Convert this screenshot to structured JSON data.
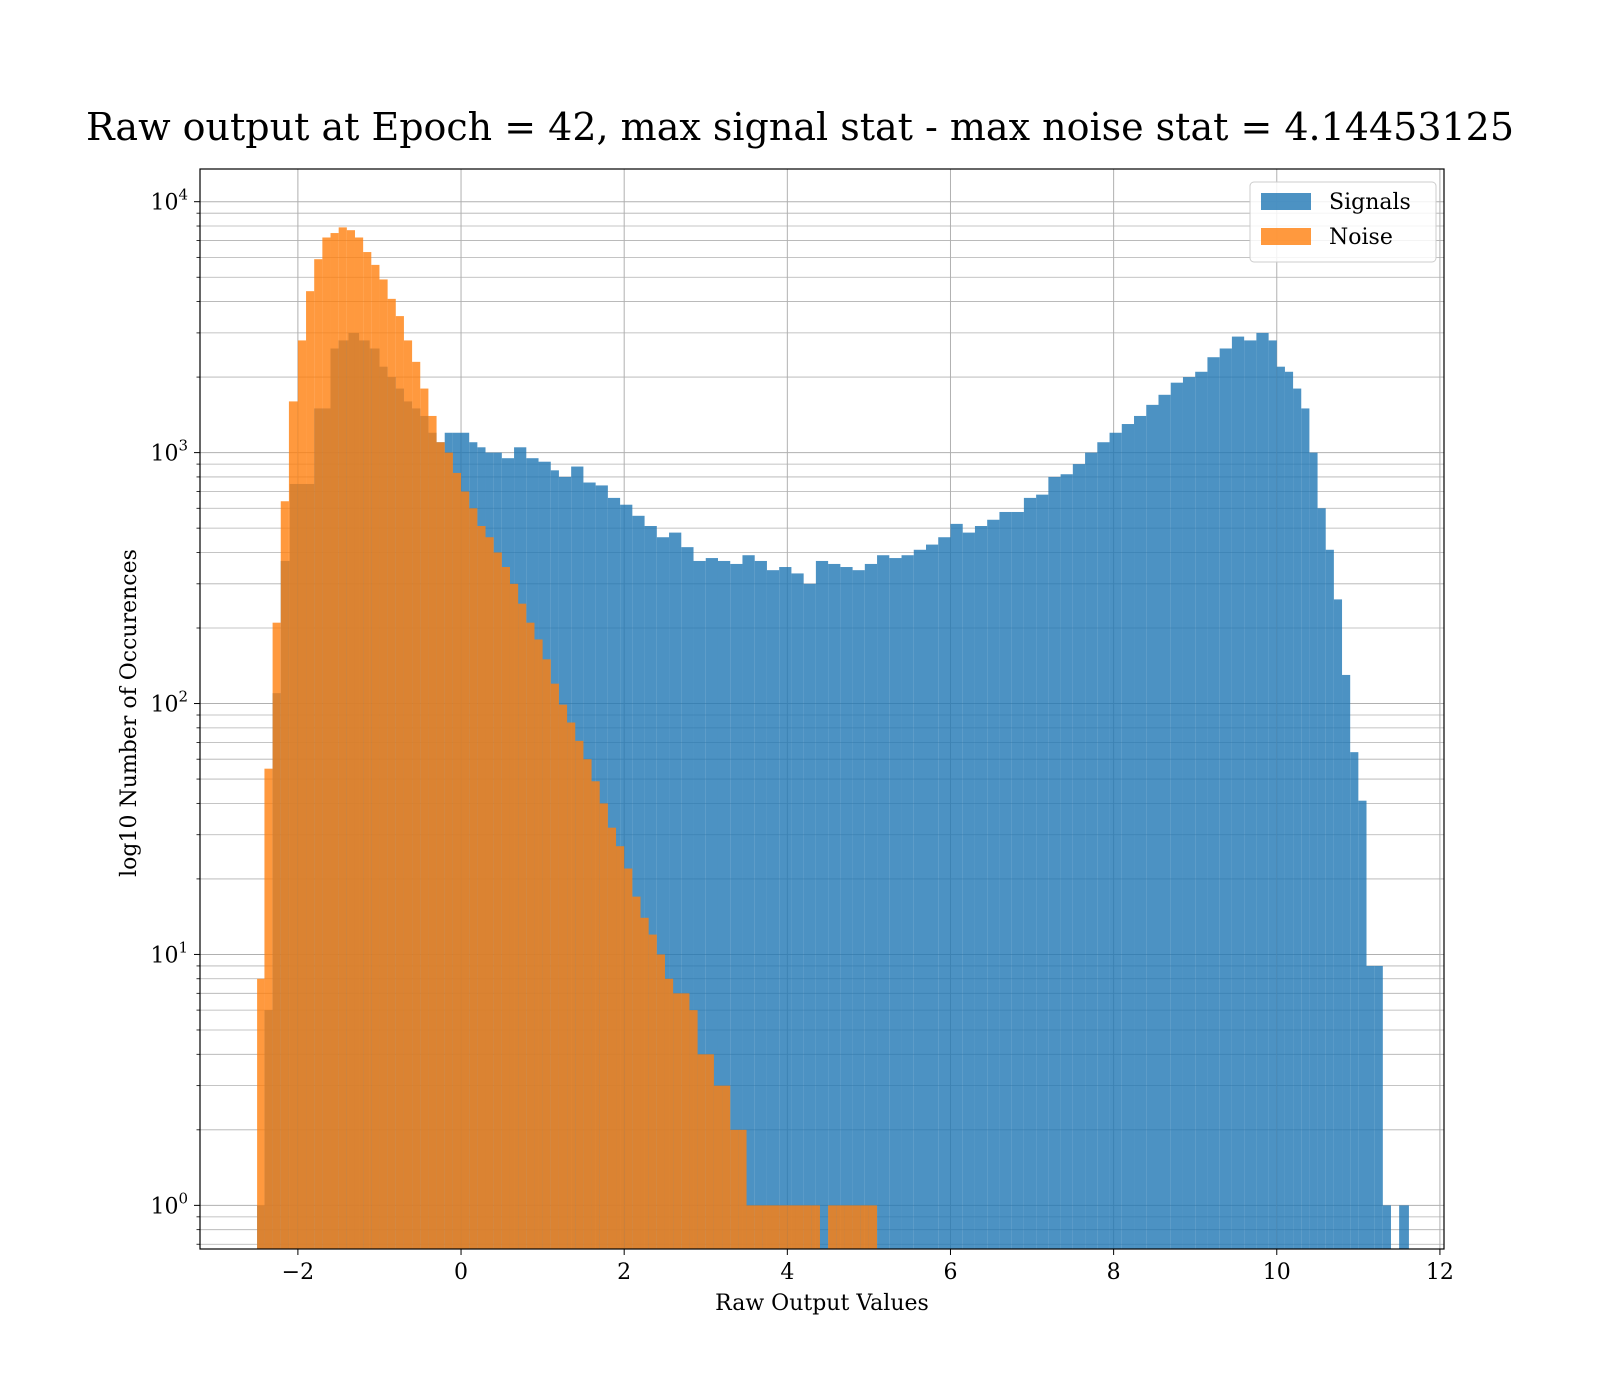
{
  "chart_data": {
    "type": "histogram",
    "title": "Raw output at Epoch = 42, max signal stat - max noise stat = 4.14453125",
    "xlabel": "Raw Output Values",
    "ylabel": "log10 Number of Occurences",
    "xlim": [
      -3.2,
      12.05
    ],
    "ylim": [
      0.67,
      13500
    ],
    "yscale": "log",
    "x_ticks": [
      -2,
      0,
      2,
      4,
      6,
      8,
      10,
      12
    ],
    "x_tick_labels": [
      "−2",
      "0",
      "2",
      "4",
      "6",
      "8",
      "10",
      "12"
    ],
    "y_ticks": [
      {
        "value": 1,
        "base": "10",
        "exp": "0"
      },
      {
        "value": 10,
        "base": "10",
        "exp": "1"
      },
      {
        "value": 100,
        "base": "10",
        "exp": "2"
      },
      {
        "value": 1000,
        "base": "10",
        "exp": "3"
      },
      {
        "value": 10000,
        "base": "10",
        "exp": "4"
      }
    ],
    "grid": true,
    "legend_position": "top-right",
    "colors": {
      "signals": "#1f77b4",
      "noise": "#ff7f0e"
    },
    "series": [
      {
        "name": "Signals",
        "bins": [
          [
            -2.5,
            -2.41,
            1
          ],
          [
            -2.41,
            -2.31,
            6
          ],
          [
            -2.31,
            -2.21,
            110
          ],
          [
            -2.21,
            -2.1,
            370
          ],
          [
            -2.1,
            -2.0,
            750
          ],
          [
            -2.0,
            -1.8,
            750
          ],
          [
            -1.8,
            -1.7,
            1500
          ],
          [
            -1.7,
            -1.6,
            1500
          ],
          [
            -1.6,
            -1.5,
            2600
          ],
          [
            -1.5,
            -1.38,
            2800
          ],
          [
            -1.38,
            -1.25,
            3000
          ],
          [
            -1.25,
            -1.12,
            2800
          ],
          [
            -1.12,
            -1.0,
            2600
          ],
          [
            -1.0,
            -0.9,
            2200
          ],
          [
            -0.9,
            -0.8,
            2000
          ],
          [
            -0.8,
            -0.7,
            1800
          ],
          [
            -0.7,
            -0.6,
            1600
          ],
          [
            -0.6,
            -0.5,
            1500
          ],
          [
            -0.5,
            -0.4,
            1400
          ],
          [
            -0.4,
            -0.3,
            1200
          ],
          [
            -0.3,
            -0.2,
            1100
          ],
          [
            -0.2,
            -0.1,
            1200
          ],
          [
            -0.1,
            0.0,
            1200
          ],
          [
            0.0,
            0.1,
            1200
          ],
          [
            0.1,
            0.2,
            1100
          ],
          [
            0.2,
            0.3,
            1050
          ],
          [
            0.3,
            0.4,
            1000
          ],
          [
            0.4,
            0.5,
            1000
          ],
          [
            0.5,
            0.65,
            950
          ],
          [
            0.65,
            0.8,
            1050
          ],
          [
            0.8,
            0.95,
            950
          ],
          [
            0.95,
            1.1,
            920
          ],
          [
            1.1,
            1.2,
            850
          ],
          [
            1.2,
            1.35,
            800
          ],
          [
            1.35,
            1.5,
            880
          ],
          [
            1.5,
            1.65,
            760
          ],
          [
            1.65,
            1.8,
            740
          ],
          [
            1.8,
            1.95,
            660
          ],
          [
            1.95,
            2.1,
            620
          ],
          [
            2.1,
            2.25,
            560
          ],
          [
            2.25,
            2.4,
            510
          ],
          [
            2.4,
            2.55,
            460
          ],
          [
            2.55,
            2.7,
            480
          ],
          [
            2.7,
            2.85,
            420
          ],
          [
            2.85,
            3.0,
            370
          ],
          [
            3.0,
            3.15,
            380
          ],
          [
            3.15,
            3.3,
            370
          ],
          [
            3.3,
            3.45,
            360
          ],
          [
            3.45,
            3.6,
            390
          ],
          [
            3.6,
            3.75,
            370
          ],
          [
            3.75,
            3.9,
            340
          ],
          [
            3.9,
            4.05,
            350
          ],
          [
            4.05,
            4.2,
            330
          ],
          [
            4.2,
            4.35,
            300
          ],
          [
            4.35,
            4.5,
            370
          ],
          [
            4.5,
            4.65,
            360
          ],
          [
            4.65,
            4.8,
            350
          ],
          [
            4.8,
            4.95,
            340
          ],
          [
            4.95,
            5.1,
            360
          ],
          [
            5.1,
            5.25,
            390
          ],
          [
            5.25,
            5.4,
            380
          ],
          [
            5.4,
            5.55,
            390
          ],
          [
            5.55,
            5.7,
            410
          ],
          [
            5.7,
            5.85,
            430
          ],
          [
            5.85,
            6.0,
            460
          ],
          [
            6.0,
            6.15,
            520
          ],
          [
            6.15,
            6.3,
            480
          ],
          [
            6.3,
            6.45,
            510
          ],
          [
            6.45,
            6.6,
            540
          ],
          [
            6.6,
            6.75,
            580
          ],
          [
            6.75,
            6.9,
            580
          ],
          [
            6.9,
            7.05,
            660
          ],
          [
            7.05,
            7.2,
            680
          ],
          [
            7.2,
            7.35,
            800
          ],
          [
            7.35,
            7.5,
            820
          ],
          [
            7.5,
            7.65,
            900
          ],
          [
            7.65,
            7.8,
            1000
          ],
          [
            7.8,
            7.95,
            1100
          ],
          [
            7.95,
            8.1,
            1200
          ],
          [
            8.1,
            8.25,
            1300
          ],
          [
            8.25,
            8.4,
            1400
          ],
          [
            8.4,
            8.55,
            1550
          ],
          [
            8.55,
            8.7,
            1700
          ],
          [
            8.7,
            8.85,
            1900
          ],
          [
            8.85,
            9.0,
            2000
          ],
          [
            9.0,
            9.15,
            2100
          ],
          [
            9.15,
            9.3,
            2400
          ],
          [
            9.3,
            9.45,
            2600
          ],
          [
            9.45,
            9.6,
            2900
          ],
          [
            9.6,
            9.75,
            2800
          ],
          [
            9.75,
            9.9,
            3000
          ],
          [
            9.9,
            10.0,
            2800
          ],
          [
            10.0,
            10.1,
            2200
          ],
          [
            10.1,
            10.2,
            2100
          ],
          [
            10.2,
            10.3,
            1800
          ],
          [
            10.3,
            10.4,
            1500
          ],
          [
            10.4,
            10.5,
            1000
          ],
          [
            10.5,
            10.6,
            600
          ],
          [
            10.6,
            10.7,
            410
          ],
          [
            10.7,
            10.8,
            260
          ],
          [
            10.8,
            10.9,
            130
          ],
          [
            10.9,
            11.0,
            64
          ],
          [
            11.0,
            11.1,
            41
          ],
          [
            11.1,
            11.2,
            9
          ],
          [
            11.2,
            11.3,
            9
          ],
          [
            11.3,
            11.4,
            1
          ],
          [
            11.4,
            11.5,
            0
          ],
          [
            11.5,
            11.62,
            1
          ]
        ]
      },
      {
        "name": "Noise",
        "bins": [
          [
            -2.5,
            -2.41,
            8
          ],
          [
            -2.41,
            -2.31,
            55
          ],
          [
            -2.31,
            -2.21,
            210
          ],
          [
            -2.21,
            -2.11,
            640
          ],
          [
            -2.11,
            -2.0,
            1600
          ],
          [
            -2.0,
            -1.9,
            2800
          ],
          [
            -1.9,
            -1.8,
            4400
          ],
          [
            -1.8,
            -1.7,
            5900
          ],
          [
            -1.7,
            -1.6,
            7200
          ],
          [
            -1.6,
            -1.5,
            7500
          ],
          [
            -1.5,
            -1.4,
            7900
          ],
          [
            -1.4,
            -1.3,
            7700
          ],
          [
            -1.3,
            -1.2,
            7200
          ],
          [
            -1.2,
            -1.1,
            6300
          ],
          [
            -1.1,
            -1.0,
            5600
          ],
          [
            -1.0,
            -0.9,
            4900
          ],
          [
            -0.9,
            -0.8,
            4100
          ],
          [
            -0.8,
            -0.7,
            3500
          ],
          [
            -0.7,
            -0.6,
            2800
          ],
          [
            -0.6,
            -0.5,
            2300
          ],
          [
            -0.5,
            -0.4,
            1800
          ],
          [
            -0.4,
            -0.3,
            1400
          ],
          [
            -0.3,
            -0.2,
            1100
          ],
          [
            -0.2,
            -0.1,
            1000
          ],
          [
            -0.1,
            0.0,
            830
          ],
          [
            0.0,
            0.1,
            700
          ],
          [
            0.1,
            0.2,
            600
          ],
          [
            0.2,
            0.3,
            510
          ],
          [
            0.3,
            0.4,
            460
          ],
          [
            0.4,
            0.5,
            400
          ],
          [
            0.5,
            0.6,
            350
          ],
          [
            0.6,
            0.7,
            300
          ],
          [
            0.7,
            0.8,
            250
          ],
          [
            0.8,
            0.9,
            210
          ],
          [
            0.9,
            1.0,
            180
          ],
          [
            1.0,
            1.1,
            150
          ],
          [
            1.1,
            1.2,
            120
          ],
          [
            1.2,
            1.3,
            99
          ],
          [
            1.3,
            1.4,
            84
          ],
          [
            1.4,
            1.5,
            71
          ],
          [
            1.5,
            1.6,
            60
          ],
          [
            1.6,
            1.7,
            49
          ],
          [
            1.7,
            1.8,
            40
          ],
          [
            1.8,
            1.9,
            32
          ],
          [
            1.9,
            2.0,
            27
          ],
          [
            2.0,
            2.1,
            22
          ],
          [
            2.1,
            2.2,
            17
          ],
          [
            2.2,
            2.3,
            14
          ],
          [
            2.3,
            2.4,
            12
          ],
          [
            2.4,
            2.5,
            10
          ],
          [
            2.5,
            2.6,
            8
          ],
          [
            2.6,
            2.7,
            7
          ],
          [
            2.7,
            2.8,
            7
          ],
          [
            2.8,
            2.9,
            6
          ],
          [
            2.9,
            3.0,
            4
          ],
          [
            3.0,
            3.1,
            4
          ],
          [
            3.1,
            3.2,
            3
          ],
          [
            3.2,
            3.3,
            3
          ],
          [
            3.3,
            3.4,
            2
          ],
          [
            3.4,
            3.5,
            2
          ],
          [
            3.5,
            3.6,
            1
          ],
          [
            3.6,
            3.7,
            1
          ],
          [
            3.7,
            3.8,
            1
          ],
          [
            3.8,
            3.9,
            1
          ],
          [
            3.9,
            4.0,
            1
          ],
          [
            4.0,
            4.1,
            1
          ],
          [
            4.1,
            4.2,
            1
          ],
          [
            4.2,
            4.3,
            1
          ],
          [
            4.3,
            4.4,
            1
          ],
          [
            4.4,
            4.5,
            0
          ],
          [
            4.5,
            4.6,
            1
          ],
          [
            4.6,
            4.7,
            1
          ],
          [
            4.7,
            4.8,
            1
          ],
          [
            4.8,
            4.9,
            1
          ],
          [
            4.9,
            5.0,
            1
          ],
          [
            5.0,
            5.1,
            1
          ]
        ]
      }
    ]
  }
}
